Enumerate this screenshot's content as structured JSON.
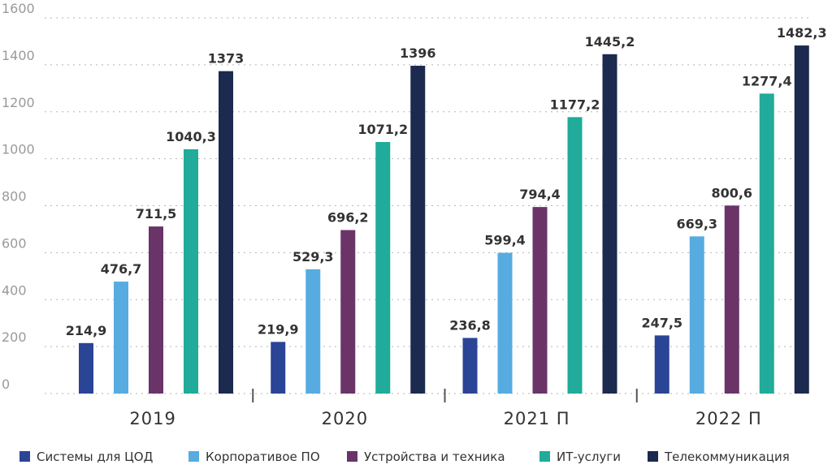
{
  "chart_data": {
    "type": "bar",
    "categories": [
      "2019",
      "2020",
      "2021 П",
      "2022 П"
    ],
    "series": [
      {
        "name": "Системы для ЦОД",
        "color": "#2a4496",
        "values": [
          214.9,
          219.9,
          236.8,
          247.5
        ],
        "labels": [
          "214,9",
          "219,9",
          "236,8",
          "247,5"
        ]
      },
      {
        "name": "Корпоративое ПО",
        "color": "#56ace0",
        "values": [
          476.7,
          529.3,
          599.4,
          669.3
        ],
        "labels": [
          "476,7",
          "529,3",
          "599,4",
          "669,3"
        ]
      },
      {
        "name": "Устройства и техника",
        "color": "#6a3468",
        "values": [
          711.5,
          696.2,
          794.4,
          800.6
        ],
        "labels": [
          "711,5",
          "696,2",
          "794,4",
          "800,6"
        ]
      },
      {
        "name": "ИТ-услуги",
        "color": "#20ab9a",
        "values": [
          1040.3,
          1071.2,
          1177.2,
          1277.4
        ],
        "labels": [
          "1040,3",
          "1071,2",
          "1177,2",
          "1277,4"
        ]
      },
      {
        "name": "Телекоммуникация",
        "color": "#1b2a4e",
        "values": [
          1373,
          1396,
          1445.2,
          1482.3
        ],
        "labels": [
          "1373",
          "1396",
          "1445,2",
          "1482,3"
        ]
      }
    ],
    "yticks": [
      "0",
      "200",
      "400",
      "600",
      "800",
      "1000",
      "1200",
      "1400",
      "1600"
    ],
    "ylim": [
      0,
      1600
    ],
    "grid": true,
    "legend_position": "bottom"
  }
}
